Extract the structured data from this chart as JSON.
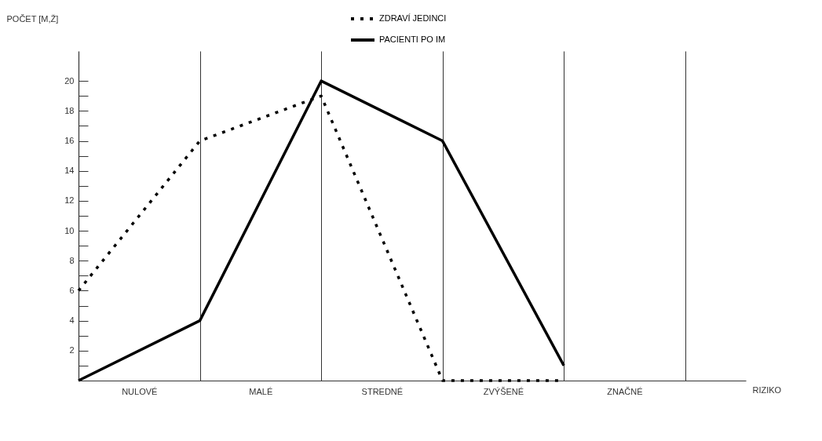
{
  "chart_data": {
    "type": "line",
    "xlabel": "RIZIKO",
    "ylabel": "POČET [M,Ž]",
    "categories": [
      null,
      "NULOVÉ",
      null,
      "MALÉ",
      null,
      "STREDNÉ",
      null,
      "ZVÝŠENÉ",
      null,
      "ZNAČNÉ",
      null
    ],
    "series": [
      {
        "name": "ZDRAVÍ JEDINCI",
        "color": "#000000",
        "line_style": "dotted",
        "values": [
          6,
          null,
          16,
          null,
          19,
          null,
          0,
          null,
          0,
          null,
          null
        ]
      },
      {
        "name": "PACIENTI PO IM",
        "color": "#000000",
        "line_style": "solid",
        "values": [
          0,
          null,
          4,
          null,
          20,
          null,
          16,
          null,
          1,
          null,
          null
        ]
      }
    ],
    "ylim": [
      0,
      22
    ],
    "yticks": [
      {
        "value": 1,
        "label": null
      },
      2,
      {
        "value": 3,
        "label": null
      },
      4,
      {
        "value": 5,
        "label": null
      },
      6,
      {
        "value": 7,
        "label": null
      },
      8,
      {
        "value": 9,
        "label": null
      },
      10,
      {
        "value": 11,
        "label": null
      },
      12,
      {
        "value": 13,
        "label": null
      },
      14,
      {
        "value": 15,
        "label": null
      },
      16,
      {
        "value": 17,
        "label": null
      },
      18,
      {
        "value": 19,
        "label": null
      },
      20
    ],
    "grid": "x",
    "legend": "top",
    "marker": "none"
  }
}
